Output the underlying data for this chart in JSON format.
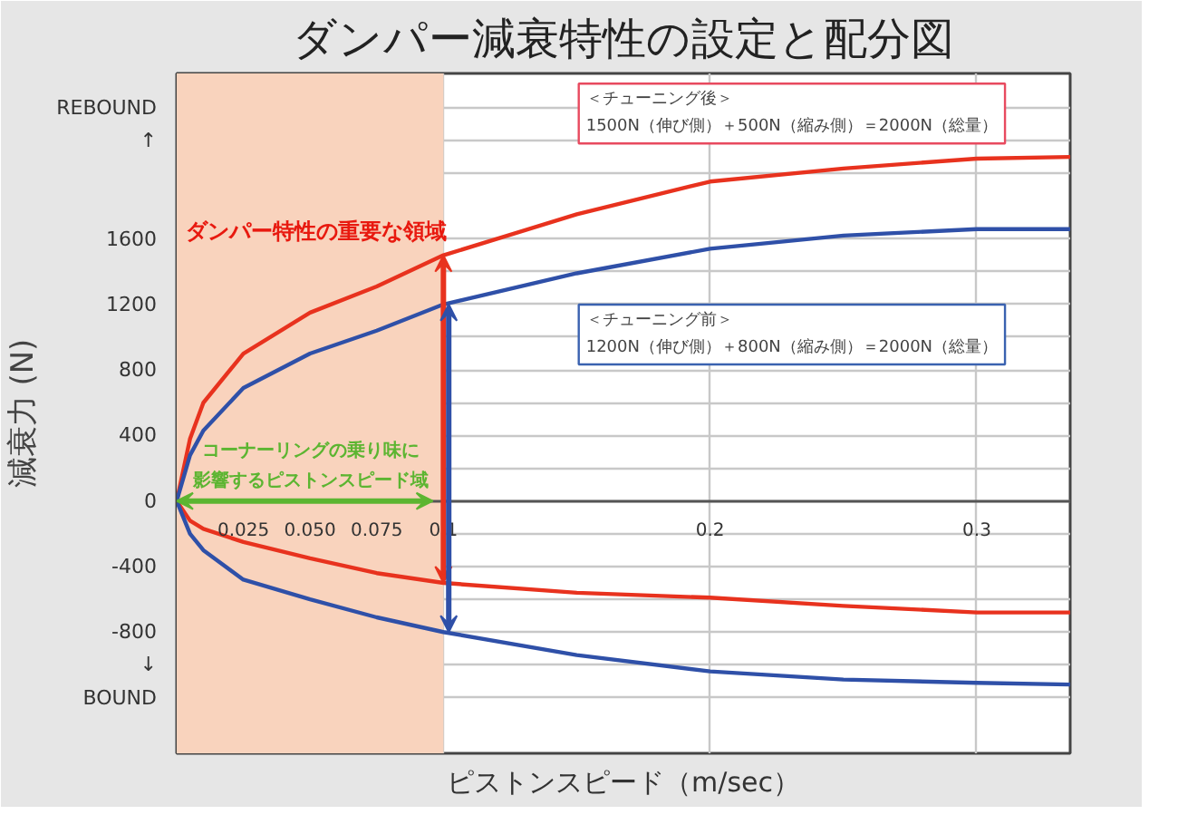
{
  "chart_data": {
    "type": "line",
    "title": "ダンパー減衰特性の設定と配分図",
    "xlabel": "ピストンスピード（m/sec）",
    "ylabel": "減衰力 (N)",
    "xlim": [
      0,
      0.335
    ],
    "ylim": [
      -1540,
      2610
    ],
    "xticks": [
      {
        "value": 0.025,
        "label": "0.025"
      },
      {
        "value": 0.05,
        "label": "0.050"
      },
      {
        "value": 0.075,
        "label": "0.075"
      },
      0.1,
      0.2,
      0.3
    ],
    "yticks": [
      {
        "value": 2400,
        "label": "REBOUND"
      },
      {
        "value": 2200,
        "label": "↑"
      },
      {
        "value": 2000,
        "label": null
      },
      1600,
      {
        "value": 1400,
        "label": null
      },
      1200,
      {
        "value": 1000,
        "label": null
      },
      800,
      {
        "value": 600,
        "label": null
      },
      400,
      {
        "value": 200,
        "label": null
      },
      0,
      {
        "value": -200,
        "label": null
      },
      -400,
      {
        "value": -600,
        "label": null
      },
      -800,
      {
        "value": -1000,
        "label": "↓"
      },
      {
        "value": -1200,
        "label": "BOUND"
      }
    ],
    "grid": true,
    "marker": "none",
    "line_style": "solid",
    "series": [
      {
        "color": "#e8321e",
        "x": [
          0,
          0.005,
          0.01,
          0.025,
          0.05,
          0.075,
          0.1,
          0.15,
          0.2,
          0.25,
          0.3,
          0.335
        ],
        "values": [
          0,
          380,
          600,
          900,
          1150,
          1310,
          1500,
          1750,
          1950,
          2030,
          2090,
          2100
        ]
      },
      {
        "color": "#e8321e",
        "x": [
          0,
          0.005,
          0.01,
          0.025,
          0.05,
          0.075,
          0.1,
          0.15,
          0.2,
          0.25,
          0.3,
          0.335
        ],
        "values": [
          0,
          -120,
          -170,
          -250,
          -350,
          -440,
          -500,
          -560,
          -590,
          -640,
          -680,
          -680
        ]
      },
      {
        "color": "#2f50a8",
        "x": [
          0,
          0.005,
          0.01,
          0.025,
          0.05,
          0.075,
          0.1,
          0.15,
          0.2,
          0.25,
          0.3,
          0.335
        ],
        "values": [
          0,
          280,
          430,
          690,
          900,
          1040,
          1200,
          1390,
          1540,
          1620,
          1660,
          1660
        ]
      },
      {
        "color": "#2f50a8",
        "x": [
          0,
          0.005,
          0.01,
          0.025,
          0.05,
          0.075,
          0.1,
          0.15,
          0.2,
          0.25,
          0.3,
          0.335
        ],
        "values": [
          0,
          -200,
          -300,
          -480,
          -600,
          -710,
          -800,
          -940,
          -1040,
          -1090,
          -1110,
          -1120
        ]
      }
    ],
    "bands": [
      {
        "axis": "x",
        "from": 0,
        "to": 0.1,
        "color": "#f9d3bd"
      }
    ],
    "annotations": [
      "ダンパー特性の重要な領域",
      "コーナーリングの乗り味に影響するピストンスピード域",
      "＜チューニング後＞\n1500N（伸び側）＋500N（縮み側）＝2000N（総量）",
      "＜チューニング前＞\n1200N（伸び側）＋800N（縮み側）＝2000N（総量）"
    ]
  }
}
